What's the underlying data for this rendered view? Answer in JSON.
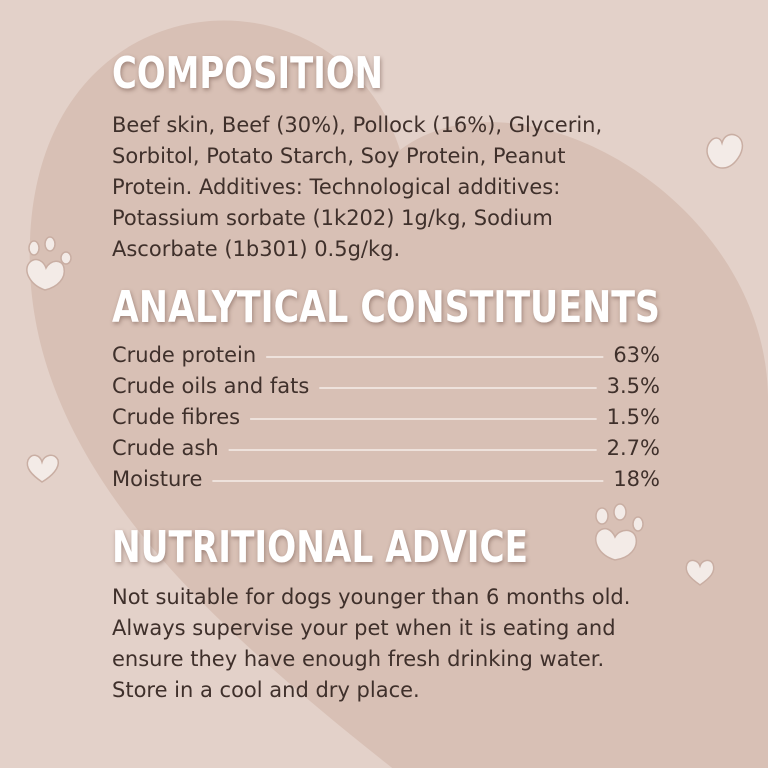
{
  "composition": {
    "title": "COMPOSITION",
    "lines": [
      "Beef skin, Beef (30%), Pollock (16%), Glycerin,",
      "Sorbitol, Potato Starch, Soy Protein, Peanut",
      "Protein. Additives: Technological additives:",
      "Potassium sorbate (1k202) 1g/kg, Sodium",
      "Ascorbate (1b301) 0.5g/kg."
    ]
  },
  "analytical_constituents": {
    "title": "ANALYTICAL CONSTITUENTS",
    "rows": [
      [
        "Crude protein",
        "63%"
      ],
      [
        "Crude oils and fats",
        "3.5%"
      ],
      [
        "Crude fibres",
        "1.5%"
      ],
      [
        "Crude ash",
        "2.7%"
      ],
      [
        "Moisture",
        "18%"
      ]
    ]
  },
  "nutritional_advice": {
    "title": "NUTRITIONAL ADVICE",
    "lines": [
      "Not suitable for dogs younger than 6 months old.",
      "Always supervise your pet when it is eating and",
      "ensure they have enough fresh drinking water.",
      "Store in a cool and dry place."
    ]
  }
}
